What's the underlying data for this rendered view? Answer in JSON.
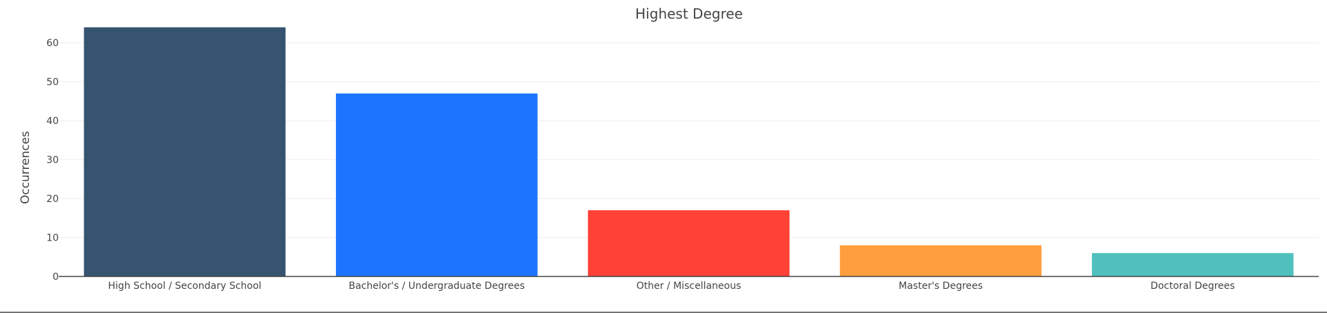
{
  "chart_data": {
    "type": "bar",
    "title": "Highest Degree",
    "xlabel": "",
    "ylabel": "Occurrences",
    "ylim": [
      0,
      68
    ],
    "yticks": [
      0,
      10,
      20,
      30,
      40,
      50,
      60
    ],
    "grid": true,
    "categories": [
      "High School / Secondary School",
      "Bachelor's / Undergraduate Degrees",
      "Other / Miscellaneous",
      "Master's Degrees",
      "Doctoral Degrees"
    ],
    "values": [
      64,
      47,
      17,
      8,
      6
    ],
    "colors": [
      "#36536f",
      "#1b75ff",
      "#ff4136",
      "#ff9e3d",
      "#4fc0bd"
    ]
  }
}
